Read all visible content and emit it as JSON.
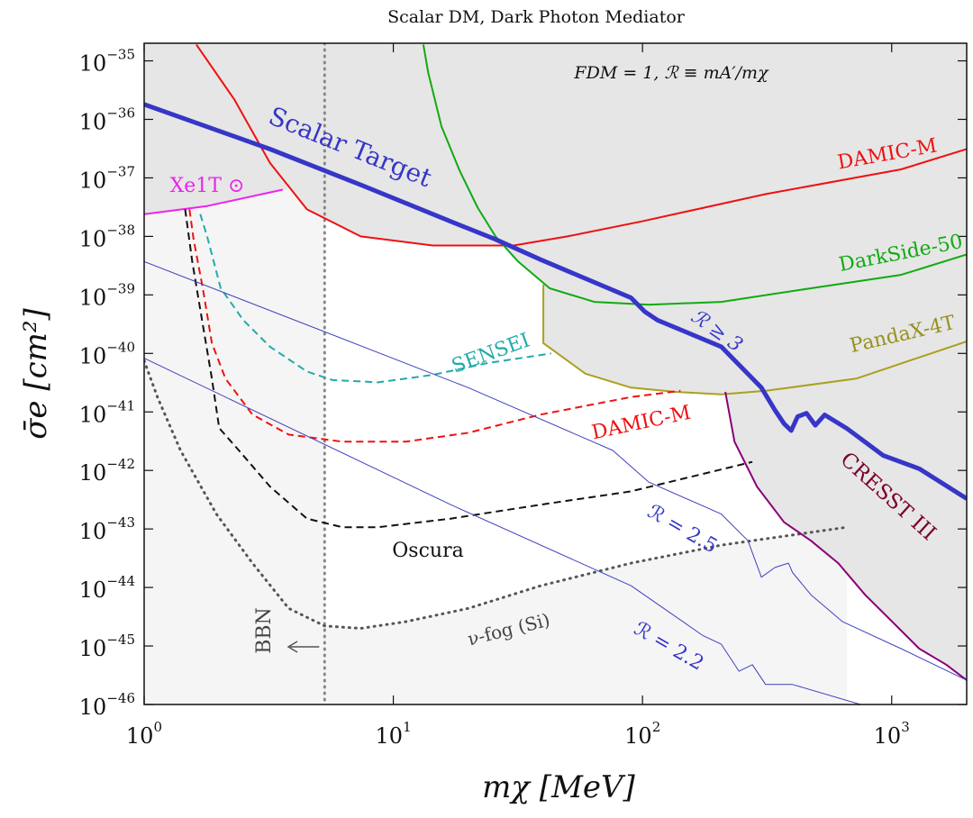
{
  "chart_data": {
    "type": "line",
    "title": "Scalar DM, Dark Photon Mediator",
    "xlabel": "mχ [MeV]",
    "ylabel": "σ̄e [cm²]",
    "xscale": "log",
    "yscale": "log",
    "xlim": [
      1,
      2000
    ],
    "ylim": [
      1e-46,
      2e-35
    ],
    "xticks": [
      {
        "value": 1,
        "label": "10^0"
      },
      {
        "value": 10,
        "label": "10^1"
      },
      {
        "value": 100,
        "label": "10^2"
      },
      {
        "value": 1000,
        "label": "10^3"
      }
    ],
    "yticks": [
      {
        "value": 1e-35,
        "label": "10^−35"
      },
      {
        "value": 1e-36,
        "label": "10^−36"
      },
      {
        "value": 1e-37,
        "label": "10^−37"
      },
      {
        "value": 1e-38,
        "label": "10^−38"
      },
      {
        "value": 1e-39,
        "label": "10^−39"
      },
      {
        "value": 1e-40,
        "label": "10^−40"
      },
      {
        "value": 1e-41,
        "label": "10^−41"
      },
      {
        "value": 1e-42,
        "label": "10^−42"
      },
      {
        "value": 1e-43,
        "label": "10^−43"
      },
      {
        "value": 1e-44,
        "label": "10^−44"
      },
      {
        "value": 1e-45,
        "label": "10^−45"
      },
      {
        "value": 1e-46,
        "label": "10^−46"
      }
    ],
    "annotations": [
      {
        "text": "FDM = 1,  ℛ ≡ mA′/mχ"
      },
      {
        "text": "ℛ ≥ 3"
      }
    ],
    "bbn": {
      "label": "BBN",
      "x": 5.3,
      "fill": "#f5f5f5",
      "color": "#888888"
    },
    "series": [
      {
        "name": "ν-fog (Si)",
        "color": "#555555",
        "style": "dotted",
        "width": 3,
        "fill_below": "#f5f5f5",
        "x": [
          1,
          1.13,
          1.4,
          1.95,
          2.72,
          3.8,
          5.3,
          7.4,
          11.2,
          20,
          39,
          90,
          207,
          662
        ],
        "values": [
          7.5e-41,
          1.8e-41,
          2.2e-42,
          1.8e-43,
          2.6e-44,
          4.4e-45,
          2.2e-45,
          2e-45,
          2.6e-45,
          4.4e-45,
          1.07e-44,
          2.6e-44,
          5.3e-44,
          1.07e-43
        ]
      },
      {
        "name": "Xe1T ⊙",
        "color": "#ee22ee",
        "style": "solid",
        "width": 2,
        "fill": "#e6e6e6",
        "x": [
          1,
          1.79,
          3.6
        ],
        "values": [
          2.4e-38,
          3.3e-38,
          6.3e-38
        ]
      },
      {
        "name": "DAMIC-M",
        "color": "#ee1111",
        "style": "solid",
        "width": 2,
        "fill": "#e6e6e6",
        "x": [
          1.62,
          2.3,
          3.2,
          4.5,
          7.4,
          14.4,
          30.4,
          50,
          99,
          313,
          1090,
          2000
        ],
        "values": [
          1.9e-35,
          2.2e-36,
          1.8e-37,
          2.9e-38,
          1e-38,
          7e-39,
          7e-39,
          1e-38,
          1.8e-38,
          5.3e-38,
          1.4e-37,
          3.1e-37
        ]
      },
      {
        "name": "DarkSide-50",
        "color": "#11aa11",
        "style": "solid",
        "width": 2,
        "fill": "#e6e6e6",
        "x": [
          13.2,
          13.8,
          15.6,
          18.5,
          21.8,
          25.7,
          31.7,
          42.4,
          64,
          106,
          207,
          474,
          1090,
          2000
        ],
        "values": [
          1.9e-35,
          6.3e-36,
          7.6e-37,
          1.3e-37,
          3.1e-38,
          1e-38,
          3.7e-39,
          1.3e-39,
          7.6e-40,
          6.8e-40,
          7.6e-40,
          1.3e-39,
          2.2e-39,
          4.9e-39
        ]
      },
      {
        "name": "PandaX-4T",
        "color": "#aaa020",
        "style": "solid",
        "width": 2,
        "fill": "#e6e6e6",
        "x": [
          40,
          40,
          59,
          90,
          136,
          207,
          313,
          720,
          2000
        ],
        "values": [
          1.5e-39,
          1.5e-40,
          4.5e-41,
          2.6e-41,
          2.2e-41,
          2e-41,
          2.3e-41,
          3.7e-41,
          1.6e-40
        ]
      },
      {
        "name": "CRESST III",
        "color": "#880077",
        "style": "solid",
        "width": 2,
        "fill": "#e6e6e6",
        "x": [
          215,
          234,
          288,
          370,
          474,
          610,
          782,
          1005,
          1290,
          1655,
          2000
        ],
        "values": [
          2.2e-41,
          3.1e-42,
          5.3e-43,
          1.3e-43,
          6.3e-44,
          2.6e-44,
          7.5e-45,
          2.6e-45,
          9e-46,
          4.8e-46,
          2.6e-46
        ]
      },
      {
        "name": "SENSEI",
        "color": "#22aaaa",
        "style": "dashed",
        "width": 2,
        "x": [
          1.68,
          1.79,
          2.03,
          2.5,
          3.2,
          4.5,
          5.7,
          8.7,
          14.4,
          23.7,
          43
        ],
        "values": [
          2.4e-38,
          1e-38,
          1.3e-39,
          3.7e-40,
          1.3e-40,
          4.9e-41,
          3.5e-41,
          3.2e-41,
          4.3e-41,
          6.8e-41,
          1e-40
        ]
      },
      {
        "name": "DAMIC-M",
        "color": "#ee1111",
        "style": "dashed",
        "width": 2,
        "x": [
          1.52,
          1.58,
          1.72,
          1.87,
          2.12,
          2.72,
          3.8,
          6.25,
          11.2,
          20,
          39,
          90,
          142
        ],
        "values": [
          2.9e-38,
          8.9e-39,
          1.3e-39,
          1.5e-40,
          3.7e-41,
          9e-42,
          4.1e-42,
          3.1e-42,
          3.1e-42,
          4.4e-42,
          9e-42,
          1.8e-41,
          2.3e-41
        ]
      },
      {
        "name": "Oscura",
        "color": "#111111",
        "style": "dashed",
        "width": 2,
        "x": [
          1.46,
          1.56,
          1.72,
          1.87,
          2.0,
          2.4,
          3.2,
          4.5,
          6.25,
          8.7,
          17,
          39,
          90,
          276
        ],
        "values": [
          2.9e-38,
          3.7e-39,
          3.1e-40,
          3.7e-41,
          5.3e-42,
          2.2e-42,
          5.3e-43,
          1.5e-43,
          1.07e-43,
          1.07e-43,
          1.5e-43,
          2.6e-43,
          4.4e-43,
          1.4e-42
        ]
      },
      {
        "name": "ℛ = 2.5",
        "color": "#4040c0",
        "style": "solid",
        "width": 1,
        "x": [
          1,
          20,
          76,
          106,
          207,
          265,
          300,
          340,
          385,
          400,
          474,
          635,
          1090,
          2000
        ],
        "values": [
          3.7e-39,
          2.6e-41,
          2.2e-42,
          6.3e-43,
          1.8e-43,
          6.3e-44,
          1.5e-44,
          2.2e-44,
          2.6e-44,
          1.8e-44,
          7.5e-45,
          2.6e-45,
          9e-46,
          2.6e-46
        ]
      },
      {
        "name": "ℛ = 2.2",
        "color": "#4040c0",
        "style": "solid",
        "width": 1,
        "x": [
          1,
          17,
          90,
          175,
          207,
          244,
          276,
          312,
          400,
          750
        ],
        "values": [
          8.3e-41,
          2.6e-43,
          1.07e-44,
          1.5e-45,
          1.07e-45,
          3.7e-46,
          4.8e-46,
          2.2e-46,
          2.2e-46,
          1e-46
        ]
      },
      {
        "name": "Scalar Target",
        "color": "#3636c8",
        "style": "solid",
        "width": 5,
        "x": [
          1,
          3.2,
          7.4,
          17,
          25.7,
          39,
          90,
          102,
          115,
          207,
          300,
          340,
          370,
          395,
          419,
          455,
          494,
          538,
          662,
          925,
          1290,
          2000
        ],
        "values": [
          1.8e-36,
          3.1e-37,
          7.6e-38,
          1.8e-38,
          8.9e-39,
          4e-39,
          8.9e-40,
          5.2e-40,
          3.7e-40,
          1.3e-40,
          2.6e-41,
          1.07e-41,
          6.3e-42,
          4.8e-42,
          8.3e-42,
          9.5e-42,
          5.9e-42,
          8.9e-42,
          5.2e-42,
          1.8e-42,
          1.07e-42,
          3.3e-43
        ]
      }
    ]
  }
}
